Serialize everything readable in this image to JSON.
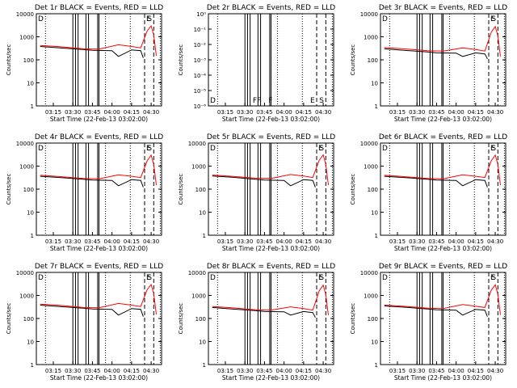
{
  "chart_data": [
    {
      "type": "line",
      "title": "Det 1r BLACK = Events, RED = LLD",
      "ylabel": "Counts/sec",
      "xlabel": "Start Time (22-Feb-13 03:02:00)",
      "yscale": "log",
      "ylim": [
        1,
        10000
      ],
      "yticks": [
        "1",
        "10",
        "100",
        "1000",
        "10000"
      ],
      "xticks": [
        "03:15",
        "03:30",
        "03:45",
        "04:00",
        "04:15",
        "04:30"
      ],
      "letters": [
        "D",
        "E",
        "S"
      ],
      "has_data": true,
      "series": [
        {
          "color": "#000000",
          "x": [
            "03:05",
            "03:20",
            "03:38",
            "03:45",
            "04:00",
            "04:05",
            "04:15",
            "04:22",
            "04:24"
          ],
          "y": [
            380,
            330,
            280,
            260,
            250,
            140,
            270,
            250,
            120
          ]
        },
        {
          "color": "#ff0000",
          "x": [
            "03:05",
            "03:20",
            "03:38",
            "03:50",
            "04:05",
            "04:15",
            "04:22",
            "04:27",
            "04:30",
            "04:32",
            "04:34"
          ],
          "y": [
            420,
            370,
            300,
            290,
            450,
            380,
            330,
            1800,
            3000,
            1200,
            150
          ]
        }
      ]
    },
    {
      "type": "line",
      "title": "Det 2r BLACK = Events, RED = LLD",
      "ylabel": "Counts/sec",
      "xlabel": "Start Time (22-Feb-13 03:02:00)",
      "yscale": "log",
      "ylim": [
        1e-06,
        1
      ],
      "yticks": [
        "10⁻⁶",
        "10⁻⁵",
        "10⁻⁴",
        "10⁻³",
        "10⁻²",
        "10⁻¹",
        "10⁰"
      ],
      "xticks": [
        "03:15",
        "03:30",
        "03:45",
        "04:00",
        "04:15",
        "04:30"
      ],
      "letters": [
        "D",
        "FF",
        "F",
        "E",
        "S"
      ],
      "has_data": false,
      "series": []
    },
    {
      "type": "line",
      "title": "Det 3r BLACK = Events, RED = LLD",
      "ylabel": "Counts/sec",
      "xlabel": "Start Time (22-Feb-13 03:02:00)",
      "yscale": "log",
      "ylim": [
        1,
        10000
      ],
      "yticks": [
        "1",
        "10",
        "100",
        "1000",
        "10000"
      ],
      "xticks": [
        "03:15",
        "03:30",
        "03:45",
        "04:00",
        "04:15",
        "04:30"
      ],
      "letters": [
        "D",
        "E",
        "S"
      ],
      "has_data": true,
      "series": [
        {
          "color": "#000000",
          "x": [
            "03:05",
            "03:20",
            "03:38",
            "03:45",
            "04:00",
            "04:05",
            "04:15",
            "04:22",
            "04:24"
          ],
          "y": [
            300,
            260,
            220,
            200,
            195,
            140,
            200,
            180,
            110
          ]
        },
        {
          "color": "#ff0000",
          "x": [
            "03:05",
            "03:20",
            "03:38",
            "03:50",
            "04:05",
            "04:15",
            "04:22",
            "04:27",
            "04:30",
            "04:32",
            "04:34"
          ],
          "y": [
            340,
            300,
            250,
            240,
            330,
            280,
            240,
            1600,
            2800,
            1100,
            140
          ]
        }
      ]
    },
    {
      "type": "line",
      "title": "Det 4r BLACK = Events, RED = LLD",
      "ylabel": "Counts/sec",
      "xlabel": "Start Time (22-Feb-13 03:02:00)",
      "yscale": "log",
      "ylim": [
        1,
        10000
      ],
      "yticks": [
        "1",
        "10",
        "100",
        "1000",
        "10000"
      ],
      "xticks": [
        "03:15",
        "03:30",
        "03:45",
        "04:00",
        "04:15",
        "04:30"
      ],
      "letters": [
        "D",
        "E",
        "S"
      ],
      "has_data": true,
      "series": [
        {
          "color": "#000000",
          "x": [
            "03:05",
            "03:20",
            "03:38",
            "03:45",
            "04:00",
            "04:05",
            "04:15",
            "04:22",
            "04:24"
          ],
          "y": [
            360,
            320,
            270,
            250,
            240,
            140,
            260,
            240,
            120
          ]
        },
        {
          "color": "#ff0000",
          "x": [
            "03:05",
            "03:20",
            "03:38",
            "03:50",
            "04:05",
            "04:15",
            "04:22",
            "04:27",
            "04:30",
            "04:32",
            "04:34"
          ],
          "y": [
            400,
            350,
            290,
            280,
            420,
            360,
            320,
            1700,
            3000,
            1200,
            150
          ]
        }
      ]
    },
    {
      "type": "line",
      "title": "Det 5r BLACK = Events, RED = LLD",
      "ylabel": "Counts/sec",
      "xlabel": "Start Time (22-Feb-13 03:02:00)",
      "yscale": "log",
      "ylim": [
        1,
        10000
      ],
      "yticks": [
        "1",
        "10",
        "100",
        "1000",
        "10000"
      ],
      "xticks": [
        "03:15",
        "03:30",
        "03:45",
        "04:00",
        "04:15",
        "04:30"
      ],
      "letters": [
        "D",
        "E",
        "S"
      ],
      "has_data": true,
      "series": [
        {
          "color": "#000000",
          "x": [
            "03:05",
            "03:20",
            "03:38",
            "03:45",
            "04:00",
            "04:05",
            "04:15",
            "04:22",
            "04:24"
          ],
          "y": [
            370,
            330,
            270,
            250,
            240,
            140,
            260,
            240,
            120
          ]
        },
        {
          "color": "#ff0000",
          "x": [
            "03:05",
            "03:20",
            "03:38",
            "03:50",
            "04:05",
            "04:15",
            "04:22",
            "04:27",
            "04:30",
            "04:32",
            "04:34"
          ],
          "y": [
            410,
            360,
            300,
            290,
            430,
            370,
            320,
            1800,
            3100,
            1200,
            150
          ]
        }
      ]
    },
    {
      "type": "line",
      "title": "Det 6r BLACK = Events, RED = LLD",
      "ylabel": "Counts/sec",
      "xlabel": "Start Time (22-Feb-13 03:02:00)",
      "yscale": "log",
      "ylim": [
        1,
        10000
      ],
      "yticks": [
        "1",
        "10",
        "100",
        "1000",
        "10000"
      ],
      "xticks": [
        "03:15",
        "03:30",
        "03:45",
        "04:00",
        "04:15",
        "04:30"
      ],
      "letters": [
        "D",
        "E",
        "S"
      ],
      "has_data": true,
      "series": [
        {
          "color": "#000000",
          "x": [
            "03:05",
            "03:20",
            "03:38",
            "03:45",
            "04:00",
            "04:05",
            "04:15",
            "04:22",
            "04:24"
          ],
          "y": [
            360,
            320,
            270,
            250,
            240,
            140,
            260,
            240,
            120
          ]
        },
        {
          "color": "#ff0000",
          "x": [
            "03:05",
            "03:20",
            "03:38",
            "03:50",
            "04:05",
            "04:15",
            "04:22",
            "04:27",
            "04:30",
            "04:32",
            "04:34"
          ],
          "y": [
            400,
            350,
            290,
            280,
            420,
            360,
            320,
            1700,
            3000,
            1200,
            150
          ]
        }
      ]
    },
    {
      "type": "line",
      "title": "Det 7r BLACK = Events, RED = LLD",
      "ylabel": "Counts/sec",
      "xlabel": "Start Time (22-Feb-13 03:02:00)",
      "yscale": "log",
      "ylim": [
        1,
        10000
      ],
      "yticks": [
        "1",
        "10",
        "100",
        "1000",
        "10000"
      ],
      "xticks": [
        "03:15",
        "03:30",
        "03:45",
        "04:00",
        "04:15",
        "04:30"
      ],
      "letters": [
        "D",
        "E",
        "S"
      ],
      "has_data": true,
      "series": [
        {
          "color": "#000000",
          "x": [
            "03:05",
            "03:20",
            "03:38",
            "03:45",
            "04:00",
            "04:05",
            "04:15",
            "04:22",
            "04:24"
          ],
          "y": [
            380,
            330,
            280,
            260,
            250,
            140,
            270,
            250,
            120
          ]
        },
        {
          "color": "#ff0000",
          "x": [
            "03:05",
            "03:20",
            "03:38",
            "03:50",
            "04:05",
            "04:15",
            "04:22",
            "04:27",
            "04:30",
            "04:32",
            "04:34"
          ],
          "y": [
            420,
            370,
            300,
            290,
            450,
            380,
            330,
            1800,
            3000,
            1200,
            150
          ]
        }
      ]
    },
    {
      "type": "line",
      "title": "Det 8r BLACK = Events, RED = LLD",
      "ylabel": "Counts/sec",
      "xlabel": "Start Time (22-Feb-13 03:02:00)",
      "yscale": "log",
      "ylim": [
        1,
        10000
      ],
      "yticks": [
        "1",
        "10",
        "100",
        "1000",
        "10000"
      ],
      "xticks": [
        "03:15",
        "03:30",
        "03:45",
        "04:00",
        "04:15",
        "04:30"
      ],
      "letters": [
        "D",
        "E",
        "S"
      ],
      "has_data": true,
      "series": [
        {
          "color": "#000000",
          "x": [
            "03:05",
            "03:20",
            "03:38",
            "03:45",
            "04:00",
            "04:05",
            "04:15",
            "04:22",
            "04:24"
          ],
          "y": [
            300,
            260,
            220,
            200,
            195,
            140,
            200,
            180,
            110
          ]
        },
        {
          "color": "#ff0000",
          "x": [
            "03:05",
            "03:20",
            "03:38",
            "03:50",
            "04:05",
            "04:15",
            "04:22",
            "04:27",
            "04:30",
            "04:32",
            "04:34"
          ],
          "y": [
            330,
            290,
            240,
            230,
            320,
            270,
            230,
            1600,
            2800,
            1100,
            140
          ]
        }
      ]
    },
    {
      "type": "line",
      "title": "Det 9r BLACK = Events, RED = LLD",
      "ylabel": "Counts/sec",
      "xlabel": "Start Time (22-Feb-13 03:02:00)",
      "yscale": "log",
      "ylim": [
        1,
        10000
      ],
      "yticks": [
        "1",
        "10",
        "100",
        "1000",
        "10000"
      ],
      "xticks": [
        "03:15",
        "03:30",
        "03:45",
        "04:00",
        "04:15",
        "04:30"
      ],
      "letters": [
        "D",
        "E",
        "S"
      ],
      "has_data": true,
      "series": [
        {
          "color": "#000000",
          "x": [
            "03:05",
            "03:20",
            "03:38",
            "03:45",
            "04:00",
            "04:05",
            "04:15",
            "04:22",
            "04:24"
          ],
          "y": [
            350,
            310,
            260,
            240,
            230,
            140,
            250,
            230,
            120
          ]
        },
        {
          "color": "#ff0000",
          "x": [
            "03:05",
            "03:20",
            "03:38",
            "03:50",
            "04:05",
            "04:15",
            "04:22",
            "04:27",
            "04:30",
            "04:32",
            "04:34"
          ],
          "y": [
            380,
            340,
            280,
            270,
            400,
            340,
            300,
            1700,
            2900,
            1150,
            145
          ]
        }
      ]
    }
  ]
}
